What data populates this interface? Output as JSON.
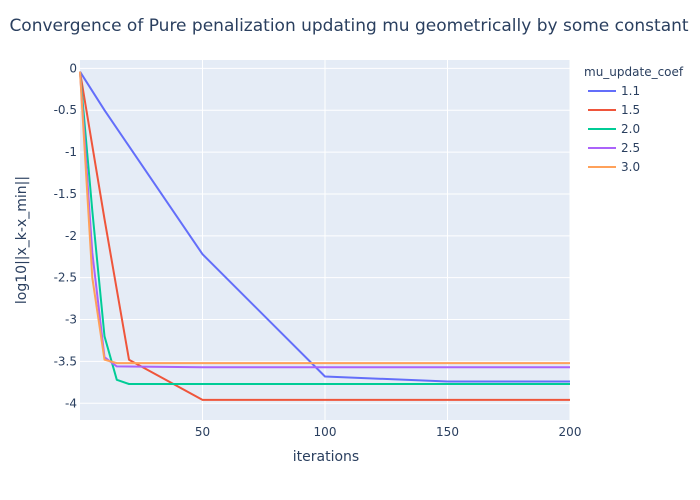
{
  "chart_data": {
    "type": "line",
    "title": "Convergence of Pure penalization updating mu geometrically by some constant",
    "xlabel": "iterations",
    "ylabel": "log10||x_k-x_min||",
    "xlim": [
      0,
      200
    ],
    "ylim": [
      -4.2,
      0.1
    ],
    "x_ticks": [
      50,
      100,
      150,
      200
    ],
    "y_ticks": [
      0,
      -0.5,
      -1,
      -1.5,
      -2,
      -2.5,
      -3,
      -3.5,
      -4
    ],
    "grid": true,
    "legend": {
      "title": "mu_update_coef",
      "placement": "top-right, outside plot"
    },
    "series": [
      {
        "name": "1.1",
        "color": "#636efa",
        "points": [
          [
            0,
            -0.04
          ],
          [
            10,
            -0.5
          ],
          [
            20,
            -0.93
          ],
          [
            50,
            -2.22
          ],
          [
            100,
            -3.68
          ],
          [
            150,
            -3.74
          ],
          [
            200,
            -3.74
          ]
        ]
      },
      {
        "name": "1.5",
        "color": "#ef553b",
        "points": [
          [
            0,
            -0.04
          ],
          [
            10,
            -1.8
          ],
          [
            20,
            -3.48
          ],
          [
            50,
            -3.96
          ],
          [
            100,
            -3.96
          ],
          [
            150,
            -3.96
          ],
          [
            200,
            -3.96
          ]
        ]
      },
      {
        "name": "2.0",
        "color": "#00cc96",
        "points": [
          [
            0,
            -0.04
          ],
          [
            5,
            -1.7
          ],
          [
            10,
            -3.2
          ],
          [
            15,
            -3.72
          ],
          [
            20,
            -3.77
          ],
          [
            50,
            -3.77
          ],
          [
            100,
            -3.77
          ],
          [
            200,
            -3.77
          ]
        ]
      },
      {
        "name": "2.5",
        "color": "#ab63fa",
        "points": [
          [
            0,
            -0.04
          ],
          [
            5,
            -2.2
          ],
          [
            10,
            -3.45
          ],
          [
            15,
            -3.56
          ],
          [
            50,
            -3.57
          ],
          [
            100,
            -3.57
          ],
          [
            200,
            -3.57
          ]
        ]
      },
      {
        "name": "3.0",
        "color": "#ffa15a",
        "points": [
          [
            0,
            -0.04
          ],
          [
            5,
            -2.5
          ],
          [
            10,
            -3.48
          ],
          [
            15,
            -3.52
          ],
          [
            50,
            -3.52
          ],
          [
            100,
            -3.52
          ],
          [
            200,
            -3.52
          ]
        ]
      }
    ]
  }
}
